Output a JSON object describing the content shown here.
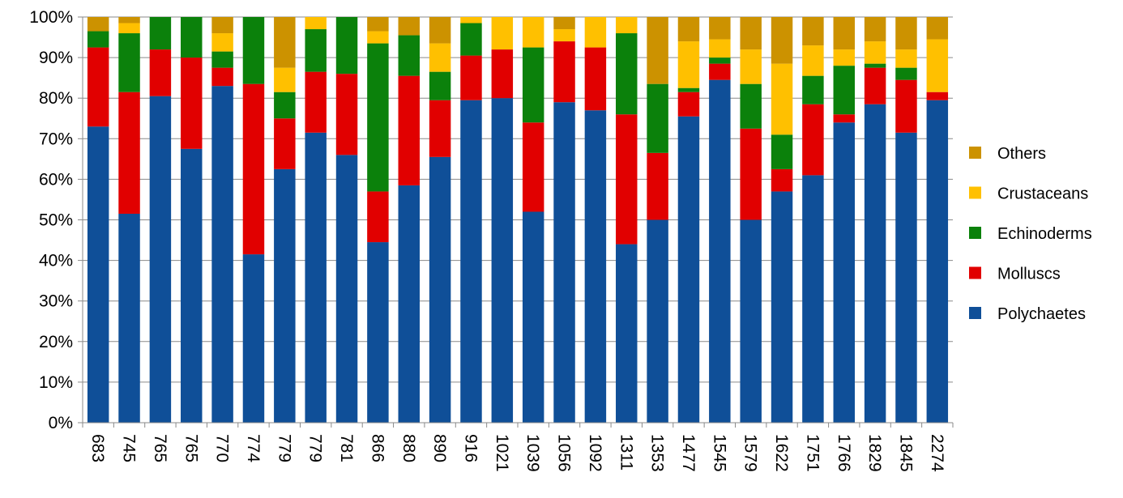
{
  "chart_data": {
    "type": "bar",
    "stacked": true,
    "percent": true,
    "categories": [
      "683",
      "745",
      "765",
      "765",
      "770",
      "774",
      "779",
      "779",
      "781",
      "866",
      "880",
      "890",
      "916",
      "1021",
      "1039",
      "1056",
      "1092",
      "1311",
      "1353",
      "1477",
      "1545",
      "1579",
      "1622",
      "1751",
      "1766",
      "1829",
      "1845",
      "2274"
    ],
    "series": [
      {
        "name": "Polychaetes",
        "color": "#0F4F98",
        "values": [
          73,
          51.5,
          80.5,
          67.5,
          83,
          41.5,
          62.5,
          71.5,
          66,
          44.5,
          58.5,
          65.5,
          79.5,
          80,
          52,
          79,
          77,
          44,
          50,
          75.5,
          84.5,
          50,
          57,
          61,
          74,
          78.5,
          71.5,
          79.5
        ]
      },
      {
        "name": "Molluscs",
        "color": "#E10000",
        "values": [
          19.5,
          30,
          11.5,
          22.5,
          4.5,
          42,
          12.5,
          15,
          20,
          12.5,
          27,
          14,
          11,
          12,
          22,
          15,
          15.5,
          32,
          16.5,
          6,
          4,
          22.5,
          5.5,
          17.5,
          2,
          9,
          13,
          2
        ]
      },
      {
        "name": "Echinoderms",
        "color": "#0B810B",
        "values": [
          4,
          14.5,
          8,
          10,
          4,
          16.5,
          6.5,
          10.5,
          14,
          36.5,
          10,
          7,
          8,
          0,
          18.5,
          0,
          0,
          20,
          17,
          1,
          1.5,
          11,
          8.5,
          7,
          12,
          1,
          3,
          0
        ]
      },
      {
        "name": "Crustaceans",
        "color": "#FFC000",
        "values": [
          0,
          2.5,
          0,
          0,
          4.5,
          0,
          6,
          3,
          0,
          3,
          0,
          7,
          1.5,
          8,
          7.5,
          3,
          7.5,
          4,
          0,
          11.5,
          4.5,
          8.5,
          17.5,
          7.5,
          4,
          5.5,
          4.5,
          13
        ]
      },
      {
        "name": "Others",
        "color": "#CC9200",
        "values": [
          3.5,
          1.5,
          0,
          0,
          4,
          0,
          12.5,
          0,
          0,
          3.5,
          4.5,
          6.5,
          0,
          0,
          0,
          3,
          0,
          0,
          16.5,
          6,
          5.5,
          8,
          11.5,
          7,
          8,
          6,
          8,
          5.5
        ]
      }
    ],
    "ylim": [
      0,
      100
    ],
    "yticks": [
      "0%",
      "10%",
      "20%",
      "30%",
      "40%",
      "50%",
      "60%",
      "70%",
      "80%",
      "90%",
      "100%"
    ],
    "grid": true,
    "legend": {
      "position": "right",
      "order": [
        "Others",
        "Crustaceans",
        "Echinoderms",
        "Molluscs",
        "Polychaetes"
      ]
    }
  }
}
